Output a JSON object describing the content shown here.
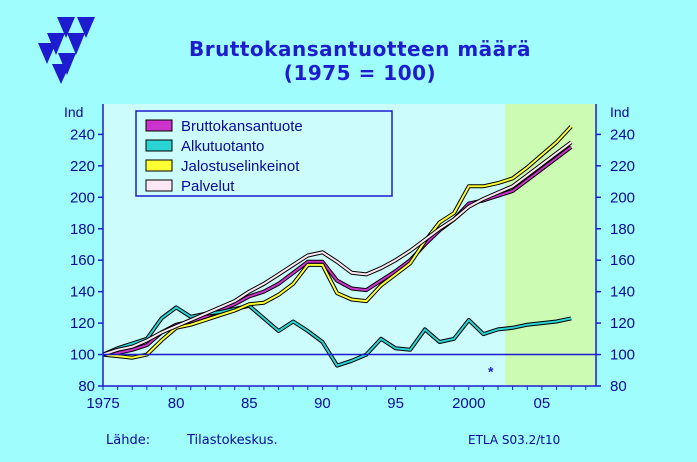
{
  "title": "Bruttokansantuotteen  määrä",
  "subtitle": "(1975 = 100)",
  "source_label": "Lähde:",
  "source_value": "Tilastokeskus.",
  "credit": "ETLA S03.2/t10",
  "forecast_marker": "*",
  "colors": {
    "background": "#9ffdfd",
    "plot_background": "#ccfcfc",
    "forecast_shade": "#ccfcb4",
    "axis": "#1d1dcf",
    "text": "#0a0a9a"
  },
  "chart_data": {
    "type": "line",
    "ylabel_left": "Ind",
    "ylabel_right": "Ind",
    "x_ticks": [
      "1975",
      "80",
      "85",
      "90",
      "95",
      "2000",
      "05"
    ],
    "y_ticks": [
      "80",
      "100",
      "120",
      "140",
      "160",
      "180",
      "200",
      "220",
      "240"
    ],
    "xlim": [
      1975,
      2008
    ],
    "ylim": [
      80,
      260
    ],
    "forecast_from": 2002.5,
    "grid": false,
    "legend_position": "top-left",
    "series": [
      {
        "name": "Bruttokansantuote",
        "color": "#cc33cc",
        "x": [
          1975,
          1976,
          1977,
          1978,
          1979,
          1980,
          1981,
          1982,
          1983,
          1984,
          1985,
          1986,
          1987,
          1988,
          1989,
          1990,
          1991,
          1992,
          1993,
          1994,
          1995,
          1996,
          1997,
          1998,
          1999,
          2000,
          2001,
          2002,
          2003,
          2004,
          2005,
          2006,
          2007
        ],
        "values": [
          100,
          101,
          103,
          106,
          114,
          119,
          121,
          124,
          128,
          132,
          137,
          140,
          145,
          152,
          159,
          159,
          147,
          142,
          141,
          147,
          153,
          160,
          170,
          179,
          186,
          196,
          198,
          201,
          204,
          211,
          218,
          225,
          232
        ]
      },
      {
        "name": "Alkutuotanto",
        "color": "#2ad4d4",
        "x": [
          1975,
          1976,
          1977,
          1978,
          1979,
          1980,
          1981,
          1982,
          1983,
          1984,
          1985,
          1986,
          1987,
          1988,
          1989,
          1990,
          1991,
          1992,
          1993,
          1994,
          1995,
          1996,
          1997,
          1998,
          1999,
          2000,
          2001,
          2002,
          2003,
          2004,
          2005,
          2006,
          2007
        ],
        "values": [
          100,
          104,
          107,
          110,
          123,
          130,
          124,
          126,
          127,
          129,
          131,
          123,
          115,
          121,
          115,
          108,
          93,
          96,
          100,
          110,
          104,
          103,
          116,
          108,
          110,
          122,
          113,
          116,
          117,
          119,
          120,
          121,
          123
        ]
      },
      {
        "name": "Jalostuselinkeinot",
        "color": "#ffff33",
        "x": [
          1975,
          1976,
          1977,
          1978,
          1979,
          1980,
          1981,
          1982,
          1983,
          1984,
          1985,
          1986,
          1987,
          1988,
          1989,
          1990,
          1991,
          1992,
          1993,
          1994,
          1995,
          1996,
          1997,
          1998,
          1999,
          2000,
          2001,
          2002,
          2003,
          2004,
          2005,
          2006,
          2007
        ],
        "values": [
          100,
          99,
          98,
          100,
          109,
          117,
          119,
          122,
          125,
          128,
          132,
          133,
          138,
          145,
          157,
          157,
          139,
          135,
          134,
          144,
          151,
          158,
          172,
          184,
          190,
          207,
          207,
          209,
          212,
          219,
          227,
          235,
          245
        ]
      },
      {
        "name": "Palvelut",
        "color": "#ffe8f4",
        "x": [
          1975,
          1976,
          1977,
          1978,
          1979,
          1980,
          1981,
          1982,
          1983,
          1984,
          1985,
          1986,
          1987,
          1988,
          1989,
          1990,
          1991,
          1992,
          1993,
          1994,
          1995,
          1996,
          1997,
          1998,
          1999,
          2000,
          2001,
          2002,
          2003,
          2004,
          2005,
          2006,
          2007
        ],
        "values": [
          100,
          103,
          105,
          109,
          114,
          118,
          122,
          126,
          130,
          134,
          140,
          145,
          151,
          157,
          163,
          165,
          159,
          152,
          151,
          155,
          160,
          166,
          173,
          180,
          186,
          194,
          199,
          203,
          207,
          214,
          221,
          228,
          235
        ]
      }
    ]
  }
}
